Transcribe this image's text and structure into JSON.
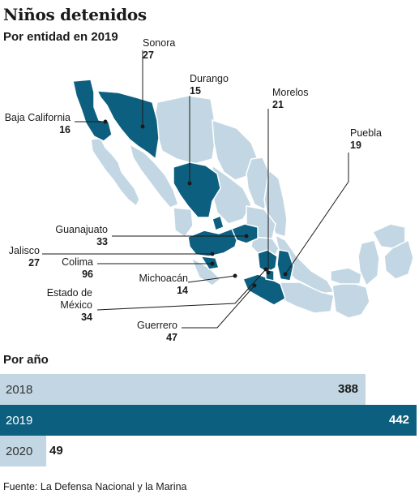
{
  "title": "Niños detenidos",
  "subtitle": "Por entidad en 2019",
  "map": {
    "states": [
      {
        "name": "Sonora",
        "value": "27"
      },
      {
        "name": "Durango",
        "value": "15"
      },
      {
        "name": "Morelos",
        "value": "21"
      },
      {
        "name": "Baja California",
        "value": "16"
      },
      {
        "name": "Puebla",
        "value": "19"
      },
      {
        "name": "Guanajuato",
        "value": "33"
      },
      {
        "name": "Jalisco",
        "value": "27"
      },
      {
        "name": "Colima",
        "value": "96"
      },
      {
        "name": "Michoacán",
        "value": "14"
      },
      {
        "name": "Estado de México",
        "value": "34"
      },
      {
        "name": "Guerrero",
        "value": "47"
      }
    ],
    "colors": {
      "highlight": "#0d5f7f",
      "base": "#c2d7e3",
      "outline": "#ffffff"
    }
  },
  "section_title": "Por año",
  "chart_data": {
    "type": "bar",
    "orientation": "horizontal",
    "categories": [
      "2018",
      "2019",
      "2020"
    ],
    "values": [
      388,
      442,
      49
    ],
    "colors": [
      "#c2d7e3",
      "#0d5f7f",
      "#c2d7e3"
    ]
  },
  "source": "Fuente: La Defensa Nacional y la Marina"
}
